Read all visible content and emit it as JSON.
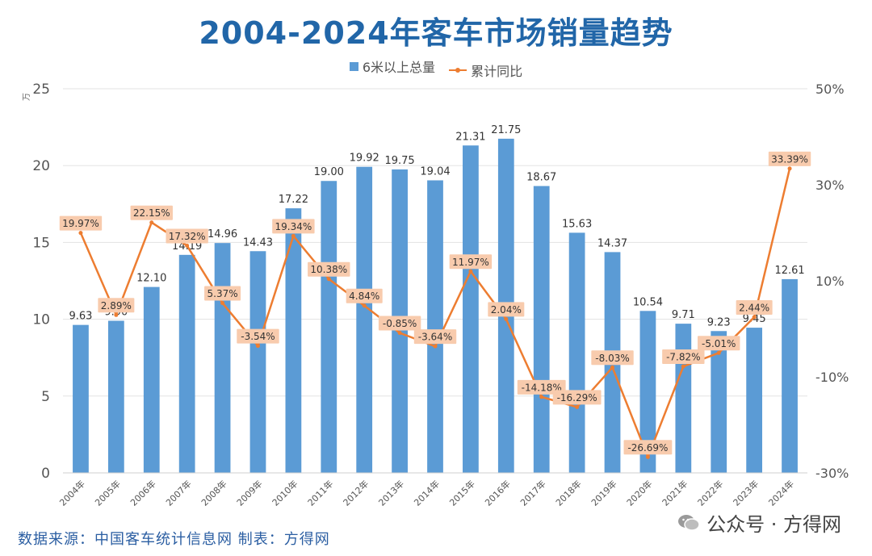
{
  "title": "2004-2024年客车市场销量趋势",
  "legend": {
    "bar": "6米以上总量",
    "line": "累计同比"
  },
  "source_label": "数据来源：中国客车统计信息网  制表：方得网",
  "watermark": "公众号 · 方得网",
  "colors": {
    "bar": "#5b9bd5",
    "line": "#ed7d31",
    "label_bg": "#f8cbad",
    "title": "#2166a8"
  },
  "chart_data": {
    "type": "bar+line",
    "title": "2004-2024年客车市场销量趋势",
    "categories": [
      "2004年",
      "2005年",
      "2006年",
      "2007年",
      "2008年",
      "2009年",
      "2010年",
      "2011年",
      "2012年",
      "2013年",
      "2014年",
      "2015年",
      "2016年",
      "2017年",
      "2018年",
      "2019年",
      "2020年",
      "2021年",
      "2022年",
      "2023年",
      "2024年"
    ],
    "series": [
      {
        "name": "6米以上总量",
        "axis": "left",
        "values": [
          9.63,
          9.9,
          12.1,
          14.19,
          14.96,
          14.43,
          17.22,
          19.0,
          19.92,
          19.75,
          19.04,
          21.31,
          21.75,
          18.67,
          15.63,
          14.37,
          10.54,
          9.71,
          9.23,
          9.45,
          12.61
        ],
        "labels": [
          "9.63",
          "9.90",
          "12.10",
          "14.19",
          "14.96",
          "14.43",
          "17.22",
          "19.00",
          "19.92",
          "19.75",
          "19.04",
          "21.31",
          "21.75",
          "18.67",
          "15.63",
          "14.37",
          "10.54",
          "9.71",
          "9.23",
          "9.45",
          "12.61"
        ]
      },
      {
        "name": "累计同比",
        "axis": "right",
        "values": [
          19.97,
          2.89,
          22.15,
          17.32,
          5.37,
          -3.54,
          19.34,
          10.38,
          4.84,
          -0.85,
          -3.64,
          11.97,
          2.04,
          -14.18,
          -16.29,
          -8.03,
          -26.69,
          -7.82,
          -5.01,
          2.44,
          33.39
        ],
        "labels": [
          "19.97%",
          "2.89%",
          "22.15%",
          "17.32%",
          "5.37%",
          "-3.54%",
          "19.34%",
          "10.38%",
          "4.84%",
          "-0.85%",
          "-3.64%",
          "11.97%",
          "2.04%",
          "-14.18%",
          "-16.29%",
          "-8.03%",
          "-26.69%",
          "-7.82%",
          "-5.01%",
          "2.44%",
          "33.39%"
        ]
      }
    ],
    "left_axis": {
      "unit": "万",
      "ylim": [
        0,
        25
      ],
      "ticks": [
        "0",
        "5",
        "10",
        "15",
        "20",
        "25"
      ]
    },
    "right_axis": {
      "ylim": [
        -30,
        50
      ],
      "ticks": [
        "-30%",
        "-10%",
        "10%",
        "30%",
        "50%"
      ]
    },
    "grid": true,
    "legend_position": "top-center"
  }
}
